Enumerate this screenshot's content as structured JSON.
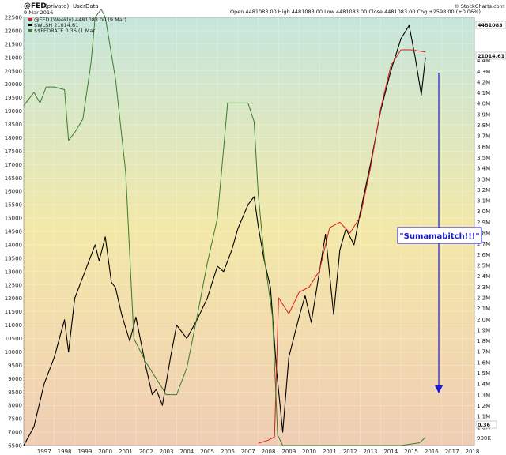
{
  "header": {
    "symbol": "@FED",
    "tag": "(private)",
    "source_label": "UserData",
    "date": "9-Mar-2016",
    "ohlc": "Open 4481083.00  High 4481083.00  Low 4481083.00  Close 4481083.00  Chg +2598.00 (+0.06%)",
    "brand": "© StockCharts.com"
  },
  "legend": [
    {
      "label": "@FED (Weekly) 4481083.00 (9 Mar)",
      "color": "#d61f1f"
    },
    {
      "label": "$WLSH 21014.61",
      "color": "#000000"
    },
    {
      "label": "$$FEDRATE 0.36 (1 Mar)",
      "color": "#3a7d2e"
    }
  ],
  "annotation": {
    "text": "\"Sumamabitch!!!\"",
    "color": "#1a1ad6"
  },
  "right_labels": {
    "fed_last": "4481083",
    "wlsh_last": "21014.61",
    "fedrate_last": "0.36"
  },
  "chart_data": {
    "type": "line",
    "xlim": [
      1996.5,
      2018.6
    ],
    "x_ticks": [
      "1997",
      "1998",
      "1999",
      "2000",
      "2001",
      "2002",
      "2003",
      "2004",
      "2005",
      "2006",
      "2007",
      "2008",
      "2009",
      "2010",
      "2011",
      "2012",
      "2013",
      "2014",
      "2015",
      "2016",
      "2017",
      "2018"
    ],
    "left_axis": {
      "range": [
        6500,
        22500
      ],
      "ticks": [
        "6500",
        "7000",
        "7500",
        "8000",
        "8500",
        "9000",
        "9500",
        "10000",
        "10500",
        "11000",
        "11500",
        "12000",
        "12500",
        "13000",
        "13500",
        "14000",
        "14500",
        "15000",
        "15500",
        "16000",
        "16500",
        "17000",
        "17500",
        "18000",
        "18500",
        "19000",
        "19500",
        "20000",
        "20500",
        "21000",
        "21500",
        "22000",
        "22500"
      ]
    },
    "right_axis": {
      "range": [
        830000,
        4800000
      ],
      "ticks": [
        "900K",
        "1.0M",
        "1.1M",
        "1.2M",
        "1.3M",
        "1.4M",
        "1.5M",
        "1.6M",
        "1.7M",
        "1.8M",
        "1.9M",
        "2.0M",
        "2.1M",
        "2.2M",
        "2.3M",
        "2.4M",
        "2.5M",
        "2.6M",
        "2.7M",
        "2.8M",
        "2.9M",
        "3.0M",
        "3.1M",
        "3.2M",
        "3.3M",
        "3.4M",
        "3.5M",
        "3.6M",
        "3.7M",
        "3.8M",
        "3.9M",
        "4.0M",
        "4.1M",
        "4.2M",
        "4.3M",
        "4.4M"
      ]
    },
    "series": [
      {
        "name": "$WLSH",
        "axis": "left",
        "x": [
          1996.5,
          1997.0,
          1997.5,
          1998.0,
          1998.5,
          1998.7,
          1999.0,
          1999.5,
          2000.0,
          2000.2,
          2000.5,
          2000.8,
          2001.0,
          2001.3,
          2001.7,
          2002.0,
          2002.5,
          2002.8,
          2003.0,
          2003.3,
          2003.7,
          2004.0,
          2004.5,
          2005.0,
          2005.5,
          2006.0,
          2006.3,
          2006.7,
          2007.0,
          2007.5,
          2007.8,
          2008.0,
          2008.3,
          2008.6,
          2008.9,
          2009.2,
          2009.5,
          2010.0,
          2010.3,
          2010.6,
          2011.0,
          2011.3,
          2011.7,
          2012.0,
          2012.3,
          2012.7,
          2013.0,
          2013.5,
          2014.0,
          2014.5,
          2015.0,
          2015.4,
          2015.7,
          2016.0,
          2016.2
        ],
        "values": [
          6500,
          7200,
          8800,
          9800,
          11200,
          10000,
          12000,
          13000,
          14000,
          13400,
          14300,
          12600,
          12400,
          11400,
          10400,
          11300,
          9400,
          8400,
          8600,
          8000,
          9800,
          11000,
          10500,
          11200,
          12000,
          13200,
          13000,
          13800,
          14600,
          15500,
          15800,
          14700,
          13400,
          12400,
          9300,
          7000,
          9800,
          11300,
          12100,
          11100,
          13000,
          14400,
          11400,
          13800,
          14600,
          14000,
          15200,
          17000,
          19000,
          20500,
          21700,
          22200,
          21000,
          19600,
          21000
        ]
      },
      {
        "name": "@FED",
        "axis": "right",
        "x": [
          2008.0,
          2008.5,
          2008.8,
          2009.0,
          2009.5,
          2010.0,
          2010.5,
          2011.0,
          2011.5,
          2012.0,
          2012.5,
          2013.0,
          2013.5,
          2014.0,
          2014.5,
          2015.0,
          2015.5,
          2016.2
        ],
        "values": [
          850000,
          880000,
          910000,
          2200000,
          2050000,
          2250000,
          2300000,
          2450000,
          2850000,
          2900000,
          2800000,
          2950000,
          3400000,
          3950000,
          4350000,
          4500000,
          4500000,
          4480000
        ]
      },
      {
        "name": "$$FEDRATE",
        "axis": "left",
        "x": [
          1996.5,
          1997.0,
          1997.3,
          1997.6,
          1998.0,
          1998.5,
          1998.7,
          1999.0,
          1999.4,
          1999.8,
          2000.0,
          2000.3,
          2000.5,
          2001.0,
          2001.5,
          2001.9,
          2002.5,
          2003.0,
          2003.5,
          2004.0,
          2004.5,
          2005.0,
          2005.5,
          2006.0,
          2006.5,
          2007.0,
          2007.5,
          2007.8,
          2008.0,
          2008.3,
          2008.7,
          2008.95,
          2009.2,
          2010.0,
          2011.0,
          2012.0,
          2013.0,
          2014.0,
          2015.0,
          2015.9,
          2016.2
        ],
        "values": [
          19200,
          19700,
          19300,
          19900,
          19900,
          19800,
          17900,
          18200,
          18700,
          20800,
          22500,
          22800,
          22500,
          20200,
          16700,
          10500,
          9600,
          9000,
          8400,
          8400,
          9400,
          11300,
          13300,
          15000,
          19300,
          19300,
          19300,
          18600,
          15900,
          13500,
          11300,
          6900,
          6500,
          6500,
          6500,
          6500,
          6500,
          6500,
          6500,
          6600,
          6800
        ]
      }
    ]
  }
}
